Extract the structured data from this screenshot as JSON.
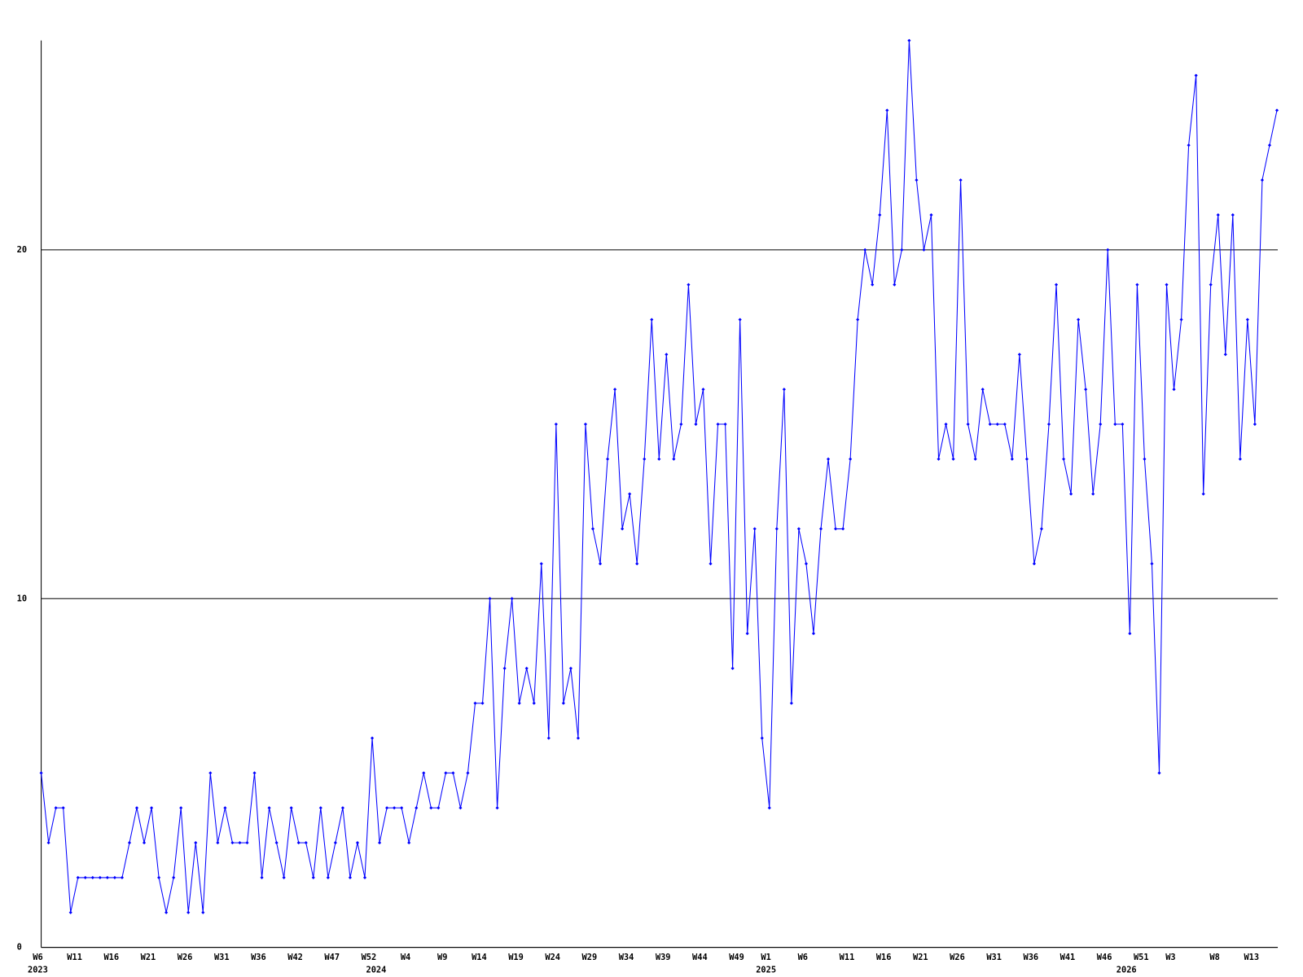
{
  "chart_data": {
    "type": "line",
    "categories": [
      "W6",
      null,
      null,
      null,
      null,
      "W11",
      null,
      null,
      null,
      null,
      "W16",
      null,
      null,
      null,
      null,
      "W21",
      null,
      null,
      null,
      null,
      "W26",
      null,
      null,
      null,
      null,
      "W31",
      null,
      null,
      null,
      null,
      "W36",
      null,
      null,
      null,
      null,
      "W42",
      null,
      null,
      null,
      null,
      "W47",
      null,
      null,
      null,
      null,
      "W52",
      null,
      null,
      null,
      null,
      "W4",
      null,
      null,
      null,
      null,
      "W9",
      null,
      null,
      null,
      null,
      "W14",
      null,
      null,
      null,
      null,
      "W19",
      null,
      null,
      null,
      null,
      "W24",
      null,
      null,
      null,
      null,
      "W29",
      null,
      null,
      null,
      null,
      "W34",
      null,
      null,
      null,
      null,
      "W39",
      null,
      null,
      null,
      null,
      "W44",
      null,
      null,
      null,
      null,
      "W49",
      null,
      null,
      null,
      "W1",
      null,
      null,
      null,
      null,
      "W6",
      null,
      null,
      null,
      null,
      null,
      "W11",
      null,
      null,
      null,
      null,
      "W16",
      null,
      null,
      null,
      null,
      "W21",
      null,
      null,
      null,
      null,
      "W26",
      null,
      null,
      null,
      null,
      "W31",
      null,
      null,
      null,
      null,
      "W36",
      null,
      null,
      null,
      null,
      "W41",
      null,
      null,
      null,
      null,
      "W46",
      null,
      null,
      null,
      null,
      "W51",
      null,
      null,
      null,
      "W3",
      null,
      null,
      null,
      null,
      null,
      "W8",
      null,
      null,
      null,
      null,
      "W13",
      null,
      null,
      null
    ],
    "years": [
      "2023",
      null,
      null,
      null,
      null,
      null,
      null,
      null,
      null,
      null,
      null,
      null,
      null,
      null,
      null,
      null,
      null,
      null,
      null,
      null,
      null,
      null,
      null,
      null,
      null,
      null,
      null,
      null,
      null,
      null,
      null,
      null,
      null,
      null,
      null,
      null,
      null,
      null,
      null,
      null,
      null,
      null,
      null,
      null,
      null,
      null,
      "2024",
      null,
      null,
      null,
      null,
      null,
      null,
      null,
      null,
      null,
      null,
      null,
      null,
      null,
      null,
      null,
      null,
      null,
      null,
      null,
      null,
      null,
      null,
      null,
      null,
      null,
      null,
      null,
      null,
      null,
      null,
      null,
      null,
      null,
      null,
      null,
      null,
      null,
      null,
      null,
      null,
      null,
      null,
      null,
      null,
      null,
      null,
      null,
      null,
      null,
      null,
      null,
      null,
      "2025",
      null,
      null,
      null,
      null,
      null,
      null,
      null,
      null,
      null,
      null,
      null,
      null,
      null,
      null,
      null,
      null,
      null,
      null,
      null,
      null,
      null,
      null,
      null,
      null,
      null,
      null,
      null,
      null,
      null,
      null,
      null,
      null,
      null,
      null,
      null,
      null,
      null,
      null,
      null,
      null,
      null,
      null,
      null,
      null,
      null,
      null,
      null,
      null,
      "2026",
      null,
      null,
      null,
      null,
      null,
      null,
      null,
      null,
      null,
      null,
      null,
      null,
      null,
      null,
      null,
      null
    ],
    "series": [
      {
        "color": "#0000ff",
        "values": [
          5,
          3,
          4,
          4,
          1,
          2,
          2,
          2,
          2,
          2,
          2,
          2,
          3,
          4,
          3,
          4,
          2,
          1,
          2,
          4,
          1,
          3,
          1,
          5,
          3,
          4,
          3,
          3,
          3,
          5,
          2,
          4,
          3,
          2,
          4,
          3,
          3,
          2,
          4,
          2,
          3,
          4,
          2,
          3,
          2,
          6,
          3,
          4,
          4,
          4,
          3,
          4,
          5,
          4,
          4,
          5,
          5,
          4,
          5,
          7,
          7,
          10,
          4,
          8,
          10,
          7,
          8,
          7,
          11,
          6,
          15,
          7,
          8,
          6,
          15,
          12,
          11,
          14,
          16,
          12,
          13,
          11,
          14,
          18,
          14,
          17,
          14,
          15,
          19,
          15,
          16,
          11,
          15,
          15,
          8,
          18,
          9,
          12,
          6,
          4,
          12,
          16,
          7,
          12,
          11,
          9,
          12,
          14,
          12,
          12,
          14,
          18,
          20,
          19,
          21,
          24,
          19,
          20,
          26,
          22,
          20,
          21,
          14,
          15,
          14,
          22,
          15,
          14,
          16,
          15,
          15,
          15,
          14,
          17,
          14,
          11,
          12,
          15,
          19,
          14,
          13,
          18,
          16,
          13,
          15,
          20,
          15,
          15,
          9,
          19,
          14,
          11,
          5,
          19,
          16,
          18,
          23,
          25,
          13,
          19,
          21,
          17,
          21,
          14,
          18,
          15,
          22,
          23,
          24
        ]
      }
    ],
    "ylim": [
      0,
      26
    ],
    "yticks": [
      0,
      10,
      20
    ],
    "grid": true
  }
}
